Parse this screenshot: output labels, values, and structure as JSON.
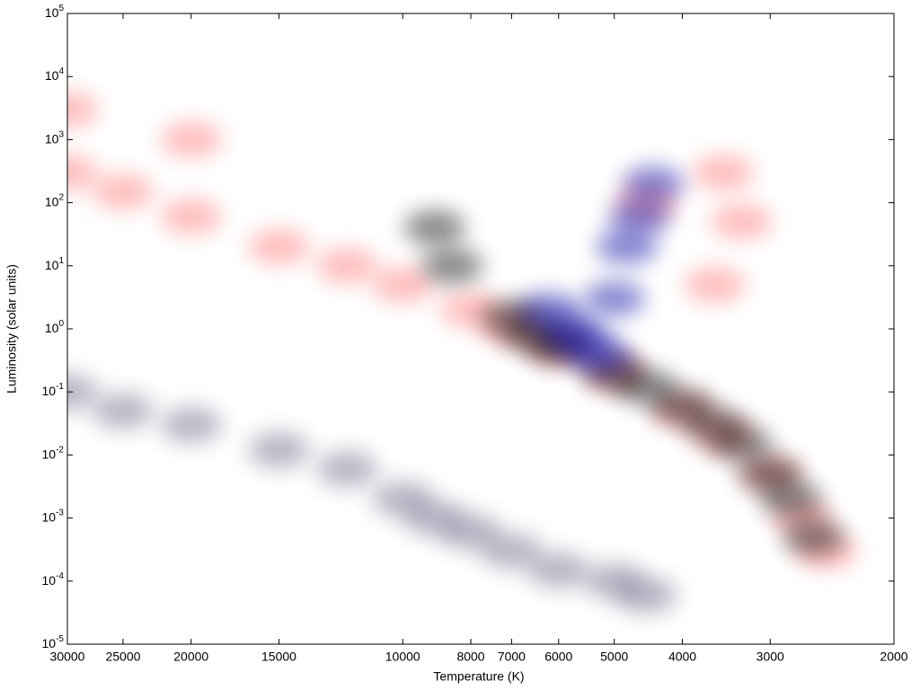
{
  "chart_data": {
    "type": "scatter",
    "x_label": "Temperature (K)",
    "y_label": "Luminosity (solar units)",
    "xscale": "log",
    "yscale": "log",
    "xlim": [
      30000,
      2000
    ],
    "ylim": [
      1e-05,
      100000
    ],
    "xticks": [
      30000,
      25000,
      20000,
      15000,
      10000,
      8000,
      7000,
      6000,
      5000,
      4000,
      3000,
      2000
    ],
    "yticks": [
      {
        "value": 1e-05,
        "label": "10^-5"
      },
      {
        "value": 0.0001,
        "label": "10^-4"
      },
      {
        "value": 0.001,
        "label": "10^-3"
      },
      {
        "value": 0.01,
        "label": "10^-2"
      },
      {
        "value": 0.1,
        "label": "10^-1"
      },
      {
        "value": 1,
        "label": "10^0"
      },
      {
        "value": 10,
        "label": "10^1"
      },
      {
        "value": 100,
        "label": "10^2"
      },
      {
        "value": 1000,
        "label": "10^3"
      },
      {
        "value": 10000,
        "label": "10^4"
      },
      {
        "value": 100000,
        "label": "10^5"
      }
    ],
    "series": [
      {
        "color": "#ff7070",
        "x": [
          30000,
          25000,
          20000,
          15000,
          12000,
          10000,
          8000,
          7000,
          6000,
          5000,
          4000,
          3500,
          3000,
          2700,
          2500,
          3500,
          3300,
          3600,
          4500,
          30000,
          20000
        ],
        "y": [
          300,
          150,
          60,
          20,
          10,
          5,
          2,
          1,
          0.5,
          0.2,
          0.05,
          0.02,
          0.005,
          0.001,
          0.0003,
          300,
          50,
          5,
          100,
          3000,
          1000
        ]
      },
      {
        "color": "#000000",
        "x": [
          7000,
          6500,
          6000,
          5000,
          4500,
          4000,
          3600,
          3300,
          3000,
          2800,
          2600,
          8500,
          9000
        ],
        "y": [
          1.5,
          0.8,
          0.5,
          0.2,
          0.12,
          0.06,
          0.03,
          0.015,
          0.005,
          0.002,
          0.0005,
          10,
          40
        ]
      },
      {
        "color": "#0000a0",
        "x": [
          6200,
          5800,
          5500,
          5200,
          5000,
          4800,
          4600,
          4400
        ],
        "y": [
          2,
          1,
          0.6,
          0.35,
          3,
          20,
          60,
          200
        ]
      },
      {
        "color": "#606080",
        "x": [
          30000,
          25000,
          20000,
          15000,
          12000,
          10000,
          9000,
          8000,
          7000,
          6000,
          5000,
          4500
        ],
        "y": [
          0.1,
          0.05,
          0.03,
          0.012,
          0.006,
          0.002,
          0.001,
          0.0006,
          0.0003,
          0.00015,
          0.0001,
          6e-05
        ]
      }
    ]
  }
}
